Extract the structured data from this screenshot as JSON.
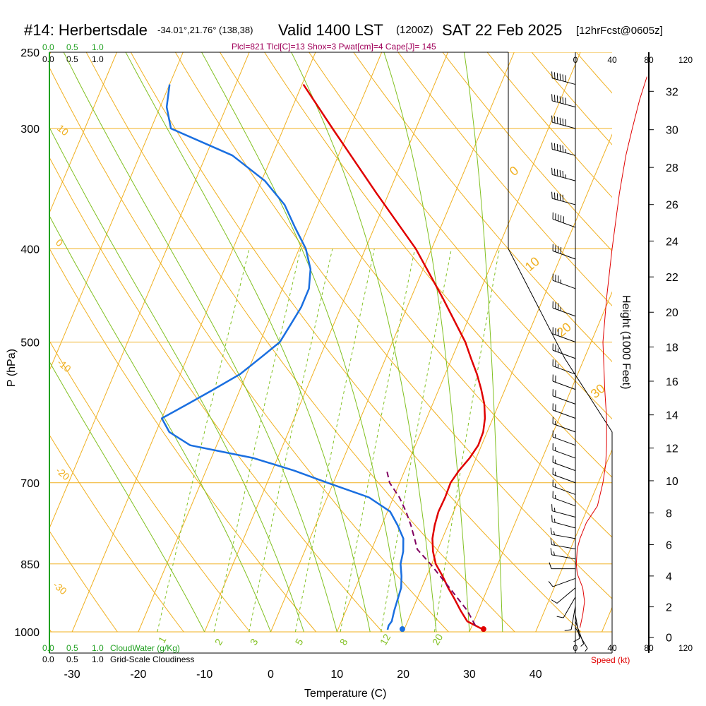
{
  "header": {
    "title": "#14: Herbertsdale",
    "coords": "-34.01°,21.76° (138,38)",
    "valid": "Valid 1400 LST",
    "utc": "(1200Z)",
    "date": "SAT 22 Feb 2025",
    "fcst": "[12hrFcst@0605z]",
    "indices": "Plcl=821 Tlcl[C]=13 Shox=3 Pwat[cm]=4 Cape[J]= 145"
  },
  "colors": {
    "temperature": "#e00000",
    "dewpoint": "#1a6fe0",
    "parcel": "#800060",
    "isotherm_isobar": "#f0b020",
    "dry_adiabat": "#f0b020",
    "moist_adiabat": "#80c020",
    "mixing_ratio": "#80c020",
    "cloud": "#20a020",
    "speed": "#e00000",
    "indices_text": "#a0005a"
  },
  "chart_data": {
    "type": "line",
    "title": "#14: Herbertsdale",
    "xlabel": "Temperature (C)",
    "ylabel": "P (hPa)",
    "x_ticks": [
      -30,
      -20,
      -10,
      0,
      10,
      20,
      30,
      40
    ],
    "p_ticks": [
      250,
      300,
      400,
      500,
      700,
      850,
      1000
    ],
    "height_label": "Height (1000 Feet)",
    "height_ticks": [
      0,
      2,
      4,
      6,
      8,
      10,
      12,
      14,
      16,
      18,
      20,
      22,
      24,
      26,
      28,
      30,
      32
    ],
    "speed_label": "Speed (kt)",
    "speed_ticks": [
      0,
      40,
      80,
      120
    ],
    "cloud_scale_top": [
      "0.0",
      "0.5",
      "1.0"
    ],
    "cloud_scale_top2": [
      "0.0",
      "0.5",
      "1.0"
    ],
    "cloud_scale_bottom": [
      "0.0",
      "0.5",
      "1.0"
    ],
    "cloud_water_label": "CloudWater (g/Kg)",
    "cloudiness_label": "Grid-Scale Cloudiness",
    "dry_adiabat_labels": [
      "10",
      "0",
      "-10",
      "-20",
      "-30"
    ],
    "moist_adiabat_labels": [
      "0",
      "10",
      "20",
      "30"
    ],
    "mixing_ratio_labels": [
      "1",
      "2",
      "3",
      "5",
      "8",
      "12",
      "20"
    ],
    "series": [
      {
        "name": "Temperature",
        "p": [
          995,
          985,
          975,
          950,
          925,
          900,
          875,
          850,
          825,
          800,
          775,
          750,
          725,
          700,
          680,
          660,
          640,
          620,
          600,
          580,
          560,
          540,
          520,
          500,
          450,
          400,
          350,
          300,
          270
        ],
        "t": [
          32.0,
          30.5,
          29.0,
          27.3,
          25.7,
          24.0,
          22.4,
          20.6,
          19.4,
          18.5,
          18.0,
          17.7,
          17.8,
          17.7,
          18.2,
          19.0,
          19.5,
          19.4,
          18.8,
          17.8,
          16.4,
          14.8,
          12.9,
          11.0,
          4.8,
          -2.4,
          -11.9,
          -22.6,
          -29.8
        ]
      },
      {
        "name": "Dewpoint",
        "p": [
          995,
          985,
          975,
          950,
          925,
          900,
          875,
          850,
          825,
          800,
          775,
          750,
          725,
          700,
          680,
          660,
          640,
          620,
          600,
          580,
          560,
          540,
          520,
          500,
          480,
          460,
          440,
          420,
          400,
          380,
          360,
          340,
          320,
          300,
          285,
          270
        ],
        "t": [
          17.5,
          17.4,
          17.6,
          17.3,
          17.1,
          16.9,
          16.2,
          15.3,
          14.9,
          14.1,
          12.4,
          10.4,
          6.3,
          -0.9,
          -6.7,
          -13.6,
          -24.0,
          -28.0,
          -30.0,
          -27.0,
          -24.0,
          -21.0,
          -19.0,
          -17.0,
          -16.5,
          -16.0,
          -16.0,
          -17.0,
          -19.0,
          -22.0,
          -25.0,
          -29.5,
          -36.0,
          -47.0,
          -49.0,
          -50.0
        ]
      },
      {
        "name": "Parcel",
        "p": [
          985,
          950,
          900,
          850,
          821,
          800,
          775,
          750,
          725,
          700,
          680
        ],
        "t": [
          30.5,
          28.3,
          24.2,
          19.8,
          16.9,
          15.8,
          14.4,
          12.8,
          10.9,
          8.5,
          7.3
        ]
      }
    ],
    "wind_barbs": [
      {
        "p": 990,
        "dir": 150,
        "spd": 5
      },
      {
        "p": 975,
        "dir": 160,
        "spd": 5
      },
      {
        "p": 960,
        "dir": 170,
        "spd": 10
      },
      {
        "p": 940,
        "dir": 190,
        "spd": 10
      },
      {
        "p": 920,
        "dir": 210,
        "spd": 10
      },
      {
        "p": 900,
        "dir": 230,
        "spd": 10
      },
      {
        "p": 880,
        "dir": 250,
        "spd": 10
      },
      {
        "p": 860,
        "dir": 270,
        "spd": 10
      },
      {
        "p": 840,
        "dir": 280,
        "spd": 15
      },
      {
        "p": 820,
        "dir": 280,
        "spd": 15
      },
      {
        "p": 800,
        "dir": 280,
        "spd": 15
      },
      {
        "p": 780,
        "dir": 285,
        "spd": 15
      },
      {
        "p": 760,
        "dir": 285,
        "spd": 15
      },
      {
        "p": 740,
        "dir": 290,
        "spd": 15
      },
      {
        "p": 720,
        "dir": 290,
        "spd": 15
      },
      {
        "p": 700,
        "dir": 290,
        "spd": 15
      },
      {
        "p": 680,
        "dir": 290,
        "spd": 15
      },
      {
        "p": 660,
        "dir": 290,
        "spd": 15
      },
      {
        "p": 640,
        "dir": 290,
        "spd": 15
      },
      {
        "p": 620,
        "dir": 290,
        "spd": 15
      },
      {
        "p": 600,
        "dir": 290,
        "spd": 20
      },
      {
        "p": 580,
        "dir": 290,
        "spd": 20
      },
      {
        "p": 560,
        "dir": 290,
        "spd": 20
      },
      {
        "p": 540,
        "dir": 290,
        "spd": 25
      },
      {
        "p": 520,
        "dir": 290,
        "spd": 25
      },
      {
        "p": 500,
        "dir": 290,
        "spd": 30
      },
      {
        "p": 470,
        "dir": 290,
        "spd": 35
      },
      {
        "p": 440,
        "dir": 290,
        "spd": 35
      },
      {
        "p": 410,
        "dir": 290,
        "spd": 40
      },
      {
        "p": 380,
        "dir": 290,
        "spd": 50
      },
      {
        "p": 360,
        "dir": 285,
        "spd": 50
      },
      {
        "p": 340,
        "dir": 285,
        "spd": 55
      },
      {
        "p": 320,
        "dir": 285,
        "spd": 55
      },
      {
        "p": 300,
        "dir": 285,
        "spd": 60
      },
      {
        "p": 285,
        "dir": 285,
        "spd": 60
      },
      {
        "p": 270,
        "dir": 285,
        "spd": 60
      }
    ],
    "speed_profile": {
      "p": [
        990,
        960,
        930,
        900,
        870,
        850,
        820,
        800,
        770,
        740,
        700,
        670,
        640,
        600,
        560,
        500,
        450,
        400,
        350,
        320,
        300,
        280,
        265
      ],
      "spd": [
        5,
        8,
        10,
        8,
        2,
        1,
        2,
        5,
        12,
        24,
        30,
        33,
        34,
        34,
        32,
        30,
        34,
        40,
        48,
        55,
        62,
        70,
        78
      ]
    }
  }
}
